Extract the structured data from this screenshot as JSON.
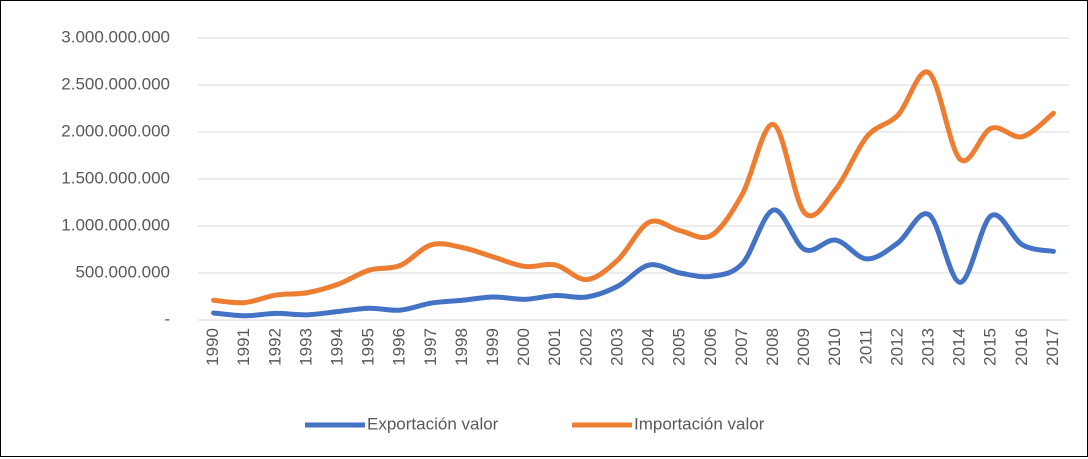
{
  "chart_data": {
    "type": "line",
    "categories": [
      "1990",
      "1991",
      "1992",
      "1993",
      "1994",
      "1995",
      "1996",
      "1997",
      "1998",
      "1999",
      "2000",
      "2001",
      "2002",
      "2003",
      "2004",
      "2005",
      "2006",
      "2007",
      "2008",
      "2009",
      "2010",
      "2011",
      "2012",
      "2013",
      "2014",
      "2015",
      "2016",
      "2017"
    ],
    "series": [
      {
        "name": "Exportación valor",
        "color": "#4472c4",
        "values": [
          75000000,
          45000000,
          70000000,
          55000000,
          90000000,
          125000000,
          105000000,
          180000000,
          210000000,
          245000000,
          220000000,
          260000000,
          245000000,
          360000000,
          585000000,
          500000000,
          465000000,
          600000000,
          1170000000,
          750000000,
          850000000,
          650000000,
          820000000,
          1120000000,
          400000000,
          1110000000,
          800000000,
          730000000
        ]
      },
      {
        "name": "Importación valor",
        "color": "#ed7d31",
        "values": [
          210000000,
          185000000,
          265000000,
          290000000,
          380000000,
          530000000,
          580000000,
          800000000,
          770000000,
          670000000,
          570000000,
          585000000,
          430000000,
          640000000,
          1040000000,
          950000000,
          900000000,
          1340000000,
          2080000000,
          1140000000,
          1390000000,
          1950000000,
          2180000000,
          2630000000,
          1710000000,
          2040000000,
          1950000000,
          2200000000
        ]
      }
    ],
    "ylim": [
      0,
      3000000000
    ],
    "yticks": [
      {
        "value": 0,
        "label": "-"
      },
      {
        "value": 500000000,
        "label": "500.000.000"
      },
      {
        "value": 1000000000,
        "label": "1.000.000.000"
      },
      {
        "value": 1500000000,
        "label": "1.500.000.000"
      },
      {
        "value": 2000000000,
        "label": "2.000.000.000"
      },
      {
        "value": 2500000000,
        "label": "2.500.000.000"
      },
      {
        "value": 3000000000,
        "label": "3.000.000.000"
      }
    ],
    "grid": true,
    "legend": "bottom"
  }
}
